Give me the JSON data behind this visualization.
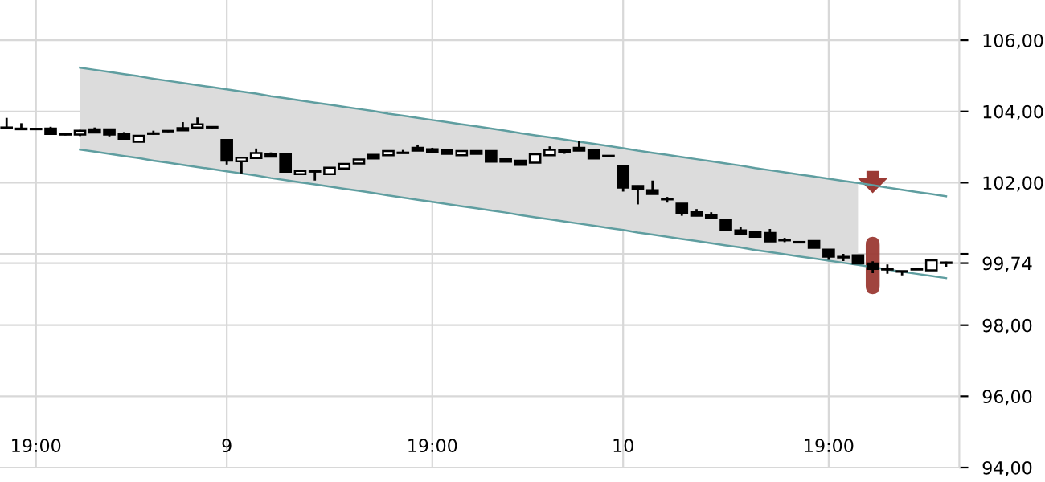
{
  "chart_data": {
    "type": "candlestick",
    "categories": [
      null,
      null,
      "19:00",
      null,
      null,
      null,
      null,
      null,
      null,
      null,
      null,
      null,
      null,
      null,
      null,
      "9",
      null,
      null,
      null,
      null,
      null,
      null,
      null,
      null,
      null,
      null,
      null,
      null,
      null,
      "19:00",
      null,
      null,
      null,
      null,
      null,
      null,
      null,
      null,
      null,
      null,
      null,
      null,
      "10",
      null,
      null,
      null,
      null,
      null,
      null,
      null,
      null,
      null,
      null,
      null,
      null,
      null,
      "19:00",
      null,
      null,
      null,
      null,
      null,
      null,
      null,
      null
    ],
    "ohlc": [
      [
        103.55,
        103.82,
        103.52,
        103.53
      ],
      [
        103.52,
        103.67,
        103.48,
        103.5
      ],
      [
        103.5,
        103.52,
        103.48,
        103.5
      ],
      [
        103.52,
        103.57,
        103.35,
        103.37
      ],
      [
        103.35,
        103.37,
        103.33,
        103.35
      ],
      [
        103.35,
        103.48,
        103.31,
        103.46
      ],
      [
        103.5,
        103.55,
        103.4,
        103.41
      ],
      [
        103.5,
        103.52,
        103.3,
        103.35
      ],
      [
        103.37,
        103.42,
        103.22,
        103.23
      ],
      [
        103.15,
        103.32,
        103.14,
        103.32
      ],
      [
        103.37,
        103.46,
        103.35,
        103.37
      ],
      [
        103.44,
        103.46,
        103.42,
        103.44
      ],
      [
        103.53,
        103.7,
        103.46,
        103.47
      ],
      [
        103.55,
        103.83,
        103.54,
        103.64
      ],
      [
        103.55,
        103.57,
        103.53,
        103.55
      ],
      [
        103.2,
        103.22,
        102.51,
        102.62
      ],
      [
        102.6,
        102.72,
        102.26,
        102.7
      ],
      [
        102.69,
        102.96,
        102.68,
        102.83
      ],
      [
        102.8,
        102.85,
        102.72,
        102.73
      ],
      [
        102.8,
        102.82,
        102.3,
        102.31
      ],
      [
        102.24,
        102.34,
        102.23,
        102.33
      ],
      [
        102.31,
        102.33,
        102.06,
        102.31
      ],
      [
        102.24,
        102.43,
        102.23,
        102.42
      ],
      [
        102.4,
        102.54,
        102.39,
        102.53
      ],
      [
        102.54,
        102.66,
        102.53,
        102.65
      ],
      [
        102.78,
        102.79,
        102.67,
        102.68
      ],
      [
        102.77,
        102.9,
        102.76,
        102.89
      ],
      [
        102.83,
        102.92,
        102.82,
        102.83
      ],
      [
        102.98,
        103.07,
        102.89,
        102.9
      ],
      [
        102.94,
        102.98,
        102.84,
        102.85
      ],
      [
        102.93,
        102.94,
        102.8,
        102.81
      ],
      [
        102.77,
        102.9,
        102.76,
        102.89
      ],
      [
        102.89,
        102.9,
        102.8,
        102.81
      ],
      [
        102.89,
        102.9,
        102.58,
        102.59
      ],
      [
        102.66,
        102.67,
        102.58,
        102.59
      ],
      [
        102.62,
        102.63,
        102.49,
        102.5
      ],
      [
        102.56,
        102.81,
        102.55,
        102.8
      ],
      [
        102.77,
        103.02,
        102.76,
        102.92
      ],
      [
        102.93,
        102.94,
        102.81,
        102.86
      ],
      [
        102.98,
        103.16,
        102.89,
        102.9
      ],
      [
        102.93,
        102.94,
        102.67,
        102.68
      ],
      [
        102.74,
        102.76,
        102.72,
        102.74
      ],
      [
        102.47,
        102.48,
        101.75,
        101.86
      ],
      [
        101.91,
        101.92,
        101.39,
        101.82
      ],
      [
        101.79,
        102.06,
        101.67,
        101.68
      ],
      [
        101.55,
        101.6,
        101.44,
        101.53
      ],
      [
        101.41,
        101.42,
        101.07,
        101.16
      ],
      [
        101.17,
        101.26,
        101.06,
        101.07
      ],
      [
        101.1,
        101.17,
        101.01,
        101.02
      ],
      [
        100.96,
        100.97,
        100.65,
        100.66
      ],
      [
        100.66,
        100.75,
        100.56,
        100.57
      ],
      [
        100.62,
        100.63,
        100.47,
        100.48
      ],
      [
        100.59,
        100.7,
        100.34,
        100.35
      ],
      [
        100.39,
        100.45,
        100.33,
        100.38
      ],
      [
        100.32,
        100.34,
        100.3,
        100.32
      ],
      [
        100.36,
        100.37,
        100.16,
        100.17
      ],
      [
        100.12,
        100.13,
        99.83,
        99.92
      ],
      [
        99.9,
        100.0,
        99.8,
        99.91
      ],
      [
        99.96,
        99.97,
        99.72,
        99.73
      ],
      [
        99.73,
        99.79,
        99.46,
        99.58
      ],
      [
        99.56,
        99.7,
        99.44,
        99.57
      ],
      [
        99.51,
        99.52,
        99.4,
        99.5
      ],
      [
        99.56,
        99.57,
        99.55,
        99.56
      ],
      [
        99.54,
        99.83,
        99.53,
        99.82
      ],
      [
        99.76,
        99.78,
        99.64,
        99.74
      ]
    ],
    "series": [
      {
        "type": "line",
        "color": "#5f9ea0",
        "values": [
          null,
          null,
          null,
          null,
          null,
          105.23,
          105.17,
          105.11,
          105.05,
          104.99,
          104.92,
          104.86,
          104.8,
          104.74,
          104.68,
          104.62,
          104.56,
          104.5,
          104.43,
          104.37,
          104.31,
          104.25,
          104.19,
          104.13,
          104.07,
          104.01,
          103.94,
          103.88,
          103.82,
          103.76,
          103.7,
          103.64,
          103.58,
          103.52,
          103.46,
          103.39,
          103.33,
          103.27,
          103.21,
          103.15,
          103.09,
          103.03,
          102.97,
          102.9,
          102.84,
          102.78,
          102.72,
          102.66,
          102.6,
          102.54,
          102.48,
          102.41,
          102.35,
          102.29,
          102.23,
          102.17,
          102.11,
          102.05,
          101.99,
          101.93,
          101.86,
          101.8,
          101.74,
          101.68,
          101.62
        ],
        "upper": [
          null,
          null,
          null,
          null,
          null,
          105.23,
          105.17,
          105.11,
          105.05,
          104.99,
          104.92,
          104.86,
          104.8,
          104.74,
          104.68,
          104.62,
          104.56,
          104.5,
          104.43,
          104.37,
          104.31,
          104.25,
          104.19,
          104.13,
          104.07,
          104.01,
          103.94,
          103.88,
          103.82,
          103.76,
          103.7,
          103.64,
          103.58,
          103.52,
          103.46,
          103.39,
          103.33,
          103.27,
          103.21,
          103.15,
          103.09,
          103.03,
          102.97,
          102.9,
          102.84,
          102.78,
          102.72,
          102.66,
          102.6,
          102.54,
          102.48,
          102.41,
          102.35,
          102.29,
          102.23,
          102.17,
          102.11,
          102.05,
          101.99,
          null,
          null,
          null,
          null,
          null,
          null
        ],
        "lower": [
          null,
          null,
          null,
          null,
          null,
          102.93,
          102.87,
          102.81,
          102.75,
          102.69,
          102.62,
          102.56,
          102.5,
          102.44,
          102.38,
          102.32,
          102.26,
          102.2,
          102.13,
          102.07,
          102.01,
          101.95,
          101.89,
          101.83,
          101.77,
          101.71,
          101.64,
          101.58,
          101.52,
          101.46,
          101.4,
          101.34,
          101.28,
          101.22,
          101.16,
          101.09,
          101.03,
          100.97,
          100.91,
          100.85,
          100.79,
          100.73,
          100.67,
          100.6,
          100.54,
          100.48,
          100.42,
          100.36,
          100.3,
          100.24,
          100.18,
          100.11,
          100.05,
          99.99,
          99.93,
          99.87,
          99.81,
          99.75,
          99.69,
          null,
          null,
          null,
          null,
          null,
          null
        ]
      },
      {
        "type": "line",
        "color": "#5f9ea0",
        "values": [
          null,
          null,
          null,
          null,
          null,
          102.93,
          102.87,
          102.81,
          102.75,
          102.69,
          102.62,
          102.56,
          102.5,
          102.44,
          102.38,
          102.32,
          102.26,
          102.2,
          102.13,
          102.07,
          102.01,
          101.95,
          101.89,
          101.83,
          101.77,
          101.71,
          101.64,
          101.58,
          101.52,
          101.46,
          101.4,
          101.34,
          101.28,
          101.22,
          101.16,
          101.09,
          101.03,
          100.97,
          100.91,
          100.85,
          100.79,
          100.73,
          100.67,
          100.6,
          100.54,
          100.48,
          100.42,
          100.36,
          100.3,
          100.24,
          100.18,
          100.11,
          100.05,
          99.99,
          99.93,
          99.87,
          99.81,
          99.75,
          99.69,
          99.63,
          99.56,
          99.5,
          99.44,
          99.38,
          99.32
        ]
      }
    ],
    "ylim": [
      94,
      107.13
    ],
    "yticks": [
      {
        "value": 94,
        "label": "94,00"
      },
      {
        "value": 96,
        "label": "96,00"
      },
      {
        "value": 98,
        "label": "98,00"
      },
      {
        "value": 100,
        "label": null
      },
      {
        "value": 102,
        "label": "102,00"
      },
      {
        "value": 104,
        "label": "104,00"
      },
      {
        "value": 106,
        "label": "106,00"
      },
      {
        "value": 99.74,
        "label": "99,74"
      }
    ],
    "grid": true
  }
}
